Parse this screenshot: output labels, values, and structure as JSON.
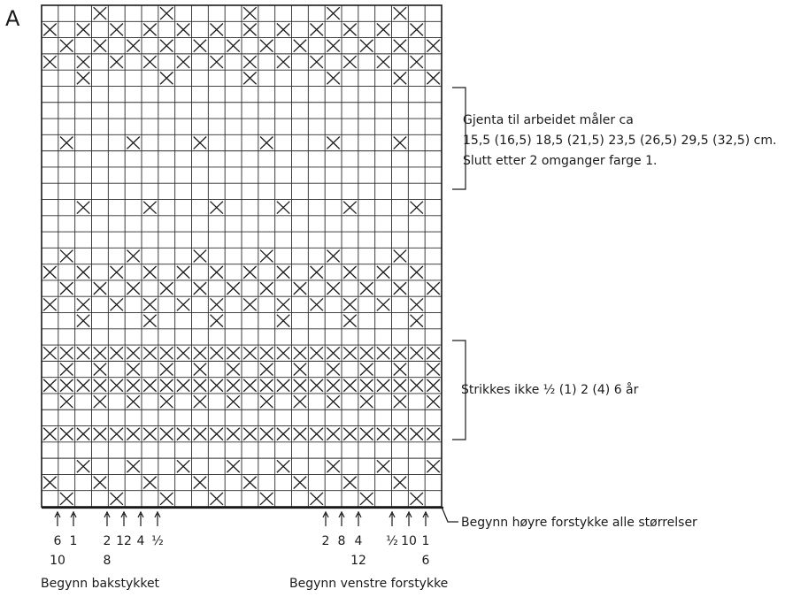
{
  "chart_label": "A",
  "grid": {
    "columns": 24,
    "rows": 29,
    "rows_top_to_bottom": [
      "...X...X....X....X...X...X",
      "X.X.X.X.X.X.X.X.X.X.X.X.",
      ".X.X.X.X.X.X.X.X.X.X.X.X",
      "X.X.X.X.X.X.X.X.X.X.X.X.",
      "..X....X....X....X...X.X",
      "........................",
      "........................",
      "........................",
      ".X...X...X...X...X...X..",
      "........................",
      "........................",
      "........................",
      "..X...X...X...X...X...X.",
      "........................",
      "........................",
      ".X...X...X...X...X...X..",
      "X.X.X.X.X.X.X.X.X.X.X.X.",
      ".X.X.X.X.X.X.X.X.X.X.X.X",
      "X.X.X.X.X.X.X.X.X.X.X.X.",
      "..X...X...X...X...X...X.",
      "........................",
      "XXXXXXXXXXXXXXXXXXXXXXXX",
      ".X.X.X.X.X.X.X.X.X.X.X.X",
      "XXXXXXXXXXXXXXXXXXXXXXXX",
      ".X.X.X.X.X.X.X.X.X.X.X.X",
      "........................",
      "XXXXXXXXXXXXXXXXXXXXXXXX",
      "........................",
      "..X..X..X..X..X..X..X..X",
      "X..X..X..X..X..X..X..X..",
      ".X..X..X..X..X..X..X..X."
    ]
  },
  "annotations": {
    "repeat": {
      "line1": "Gjenta til arbeidet måler ca",
      "line2": "15,5 (16,5) 18,5 (21,5) 23,5 (26,5) 29,5 (32,5) cm.",
      "line3": "Slutt etter 2 omganger farge 1."
    },
    "skip": "Strikkes ikke ½ (1) 2 (4) 6 år",
    "right_start": "Begynn høyre forstykke alle størrelser"
  },
  "bottom": {
    "back": {
      "label": "Begynn bakstykket",
      "sizes": [
        {
          "top": "6",
          "bottom": "10"
        },
        {
          "top": "1",
          "bottom": ""
        },
        {
          "top": "2",
          "bottom": "8"
        },
        {
          "top": "12",
          "bottom": ""
        },
        {
          "top": "4",
          "bottom": ""
        },
        {
          "top": "½",
          "bottom": ""
        }
      ]
    },
    "left_front": {
      "label": "Begynn venstre forstykke",
      "sizes": [
        {
          "top": "2",
          "bottom": ""
        },
        {
          "top": "8",
          "bottom": ""
        },
        {
          "top": "4",
          "bottom": "12"
        },
        {
          "top": "½",
          "bottom": ""
        },
        {
          "top": "10",
          "bottom": ""
        },
        {
          "top": "1",
          "bottom": "6"
        }
      ]
    }
  }
}
